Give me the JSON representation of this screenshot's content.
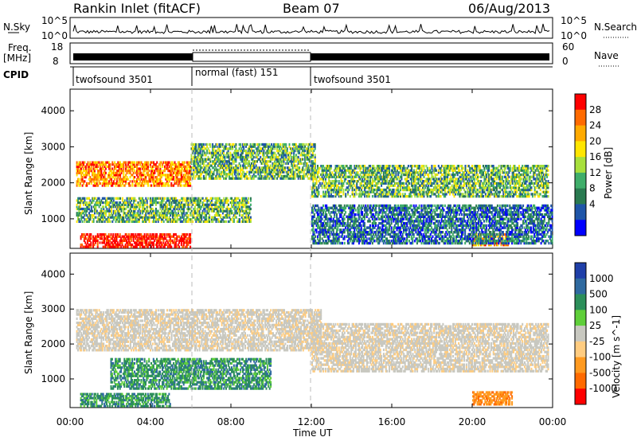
{
  "header": {
    "station": "Rankin Inlet (fitACF)",
    "beam": "Beam 07",
    "date": "06/Aug/2013"
  },
  "top_panels": {
    "nsky_label": "N.Sky",
    "nsky_ticks": [
      "10^5",
      "10^0"
    ],
    "nsearch_label": "N.Search",
    "freq_label": "Freq.",
    "freq_unit": "[MHz]",
    "freq_ticks": [
      "18",
      "8"
    ],
    "nave_label": "Nave",
    "nave_ticks": [
      "60",
      "0"
    ],
    "cpid_label": "CPID",
    "cpid_segments": [
      {
        "label": "twofsound 3501",
        "start": "00:00",
        "end": "06:00"
      },
      {
        "label": "normal (fast) 151",
        "start": "06:00",
        "end": "12:00"
      },
      {
        "label": "twofsound 3501",
        "start": "12:00",
        "end": "24:00"
      }
    ]
  },
  "chart_data": [
    {
      "type": "heatmap",
      "name": "power-panel",
      "ylabel": "Slant Range [km]",
      "yticks": [
        1000,
        2000,
        3000,
        4000
      ],
      "ylim": [
        180,
        4600
      ],
      "xlim": [
        "00:00",
        "24:00"
      ],
      "colorbar": {
        "label": "Power [dB]",
        "ticks": [
          "28",
          "24",
          "20",
          "16",
          "12",
          "8",
          "4"
        ],
        "colors": [
          "#ff0000",
          "#ff6a00",
          "#ffaa00",
          "#ffe600",
          "#a8e03c",
          "#3fae6a",
          "#2a7a50",
          "#1f55a8",
          "#0000ff"
        ]
      },
      "echo_regions": [
        {
          "t0": 0.3,
          "t1": 6.0,
          "r0": 1900,
          "r1": 2600,
          "level": "high"
        },
        {
          "t0": 6.0,
          "t1": 12.2,
          "r0": 2100,
          "r1": 3100,
          "level": "mid"
        },
        {
          "t0": 12.0,
          "t1": 23.8,
          "r0": 1600,
          "r1": 2500,
          "level": "mid"
        },
        {
          "t0": 0.3,
          "t1": 9.0,
          "r0": 900,
          "r1": 1600,
          "level": "mid"
        },
        {
          "t0": 0.5,
          "t1": 6.0,
          "r0": 200,
          "r1": 600,
          "level": "very-high"
        },
        {
          "t0": 20.0,
          "t1": 21.8,
          "r0": 250,
          "r1": 600,
          "level": "high"
        },
        {
          "t0": 12.0,
          "t1": 24.0,
          "r0": 300,
          "r1": 1400,
          "level": "low"
        }
      ]
    },
    {
      "type": "heatmap",
      "name": "velocity-panel",
      "ylabel": "Slant Range [km]",
      "xlabel": "Time UT",
      "yticks": [
        1000,
        2000,
        3000,
        4000
      ],
      "ylim": [
        180,
        4600
      ],
      "xlim": [
        "00:00",
        "24:00"
      ],
      "xticks": [
        "00:00",
        "04:00",
        "08:00",
        "12:00",
        "16:00",
        "20:00",
        "00:00"
      ],
      "colorbar": {
        "label": "Velocity [m s^-1]",
        "ticks": [
          "1000",
          "500",
          "100",
          "25",
          "-25",
          "-100",
          "-500",
          "-1000"
        ],
        "colors": [
          "#1f3fa8",
          "#2f6aa0",
          "#2c8f5a",
          "#5fcf3a",
          "#c8c8c0",
          "#ffcc80",
          "#ff9a20",
          "#ff6a00",
          "#ff0000"
        ]
      },
      "echo_regions": [
        {
          "t0": 0.3,
          "t1": 12.5,
          "r0": 1800,
          "r1": 3000,
          "level": "ground"
        },
        {
          "t0": 12.0,
          "t1": 23.8,
          "r0": 1200,
          "r1": 2600,
          "level": "ground"
        },
        {
          "t0": 2.0,
          "t1": 10.0,
          "r0": 700,
          "r1": 1600,
          "level": "toward"
        },
        {
          "t0": 0.5,
          "t1": 5.0,
          "r0": 200,
          "r1": 600,
          "level": "toward"
        },
        {
          "t0": 20.0,
          "t1": 22.0,
          "r0": 250,
          "r1": 650,
          "level": "away"
        }
      ]
    }
  ]
}
